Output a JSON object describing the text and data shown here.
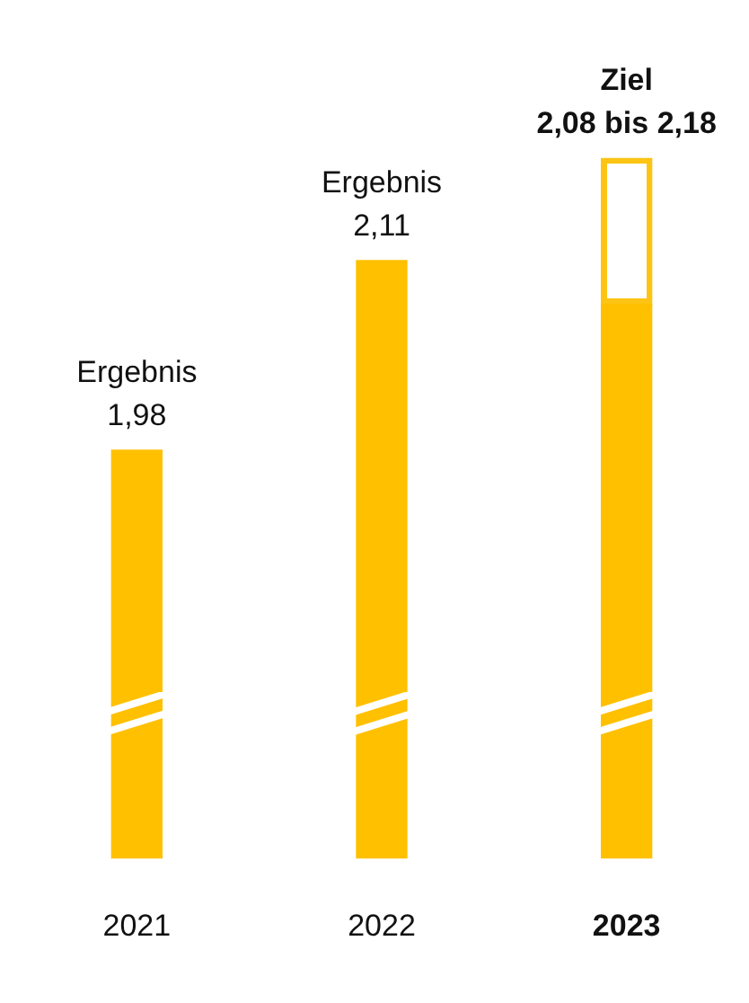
{
  "chart_data": {
    "type": "bar",
    "categories": [
      "2021",
      "2022",
      "2023"
    ],
    "stacked": true,
    "tick_labels": "x",
    "grid": false,
    "legend": false,
    "series": [
      {
        "color": "#ffc000",
        "values": [
          1.98,
          2.11,
          2.08
        ],
        "value_labels": [
          "Ergebnis\n1,98",
          "Ergebnis\n2,11",
          null
        ]
      },
      {
        "color": "#fdc413",
        "values": [
          null,
          null,
          0.1
        ],
        "value_labels": [
          null,
          null,
          "Ziel\n2,08 bis 2,18"
        ]
      }
    ]
  }
}
